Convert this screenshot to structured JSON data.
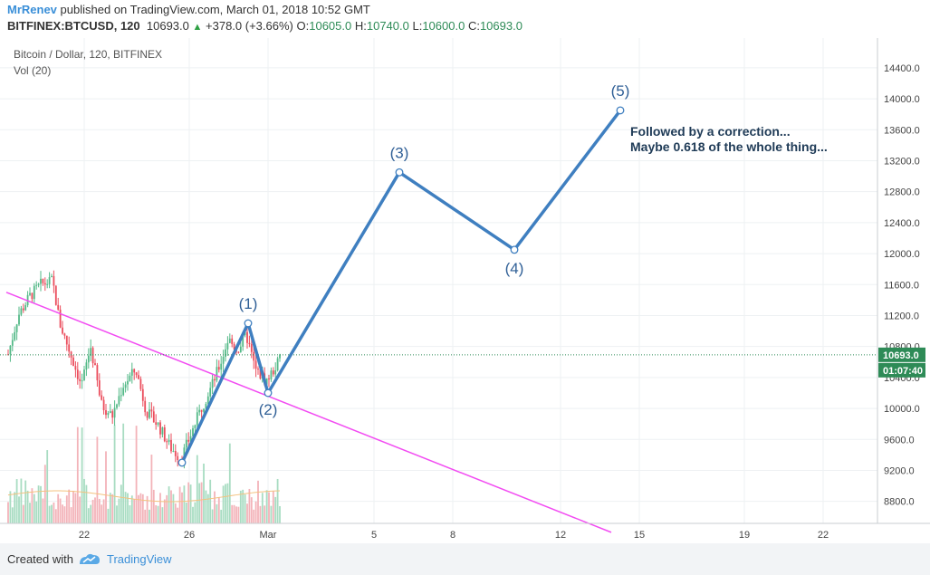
{
  "header": {
    "user": "MrRenev",
    "published": "published on TradingView.com, March 01, 2018 10:52 GMT",
    "symbol": "BITFINEX:BTCUSD, 120",
    "last": "10693.0",
    "change": "+378.0 (+3.66%)",
    "o_label": "O:",
    "o": "10605.0",
    "h_label": "H:",
    "h": "10740.0",
    "l_label": "L:",
    "l": "10600.0",
    "c_label": "C:",
    "c": "10693.0"
  },
  "legend": {
    "title": "Bitcoin / Dollar, 120, BITFINEX",
    "volume": "Vol (20)"
  },
  "footer": {
    "created_with": "Created with",
    "brand": "TradingView"
  },
  "chart_data": {
    "type": "candlestick",
    "y_ticks": [
      "14400.0",
      "14000.0",
      "13600.0",
      "13200.0",
      "12800.0",
      "12400.0",
      "12000.0",
      "11600.0",
      "11200.0",
      "10800.0",
      "10400.0",
      "10000.0",
      "9600.0",
      "9200.0",
      "8800.0"
    ],
    "x_ticks": [
      "22",
      "26",
      "Mar",
      "5",
      "8",
      "12",
      "15",
      "19",
      "22"
    ],
    "ylim": [
      8450,
      14800
    ],
    "price_label": "10693.0",
    "countdown_label": "01:07:40",
    "last_price": 10693,
    "wave_points": [
      {
        "label": "",
        "price": 9300
      },
      {
        "label": "(1)",
        "price": 11100
      },
      {
        "label": "(2)",
        "price": 10200
      },
      {
        "label": "(3)",
        "price": 13050
      },
      {
        "label": "(4)",
        "price": 12050
      },
      {
        "label": "(5)",
        "price": 13850
      }
    ],
    "annotation": [
      "Followed by a correction...",
      "Maybe 0.618 of the whole thing..."
    ],
    "trendline": {
      "start_price": 11500,
      "end_price": 8400
    },
    "colors": {
      "up": "#53b987",
      "down": "#eb4d5c",
      "wave": "#3f7fc0",
      "trend": "#f24cf2",
      "price_line": "#2e8b57",
      "vol_ma": "#f4c27f"
    }
  }
}
